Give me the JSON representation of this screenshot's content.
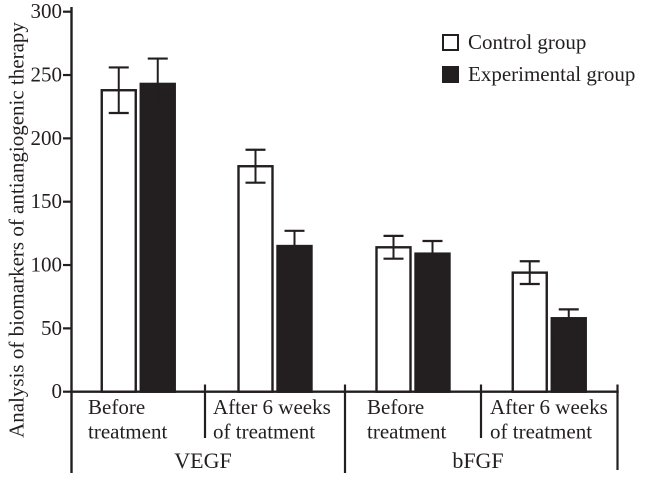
{
  "chart_data": {
    "type": "bar",
    "title": "",
    "ylabel": "Analysis of biomarkers of antiangiogenic therapy",
    "xlabel": "",
    "ylim": [
      0,
      300
    ],
    "yticks": [
      0,
      50,
      100,
      150,
      200,
      250,
      300
    ],
    "grid": false,
    "legend_position": "top-right",
    "ink_color": "#231f20",
    "background": "#ffffff",
    "group_labels": [
      "VEGF",
      "bFGF"
    ],
    "categories": [
      {
        "group": "VEGF",
        "lines": [
          "Before",
          "treatment"
        ]
      },
      {
        "group": "VEGF",
        "lines": [
          "After 6 weeks",
          "of treatment"
        ]
      },
      {
        "group": "bFGF",
        "lines": [
          "Before",
          "treatment"
        ]
      },
      {
        "group": "bFGF",
        "lines": [
          "After 6 weeks",
          "of treatment"
        ]
      }
    ],
    "series": [
      {
        "name": "Control group",
        "fill": "#ffffff",
        "values": [
          238,
          178,
          114,
          94
        ],
        "errors": [
          18,
          13,
          9,
          9
        ]
      },
      {
        "name": "Experimental group",
        "fill": "#231f20",
        "values": [
          243,
          115,
          109,
          58
        ],
        "errors": [
          20,
          12,
          10,
          7
        ]
      }
    ]
  }
}
